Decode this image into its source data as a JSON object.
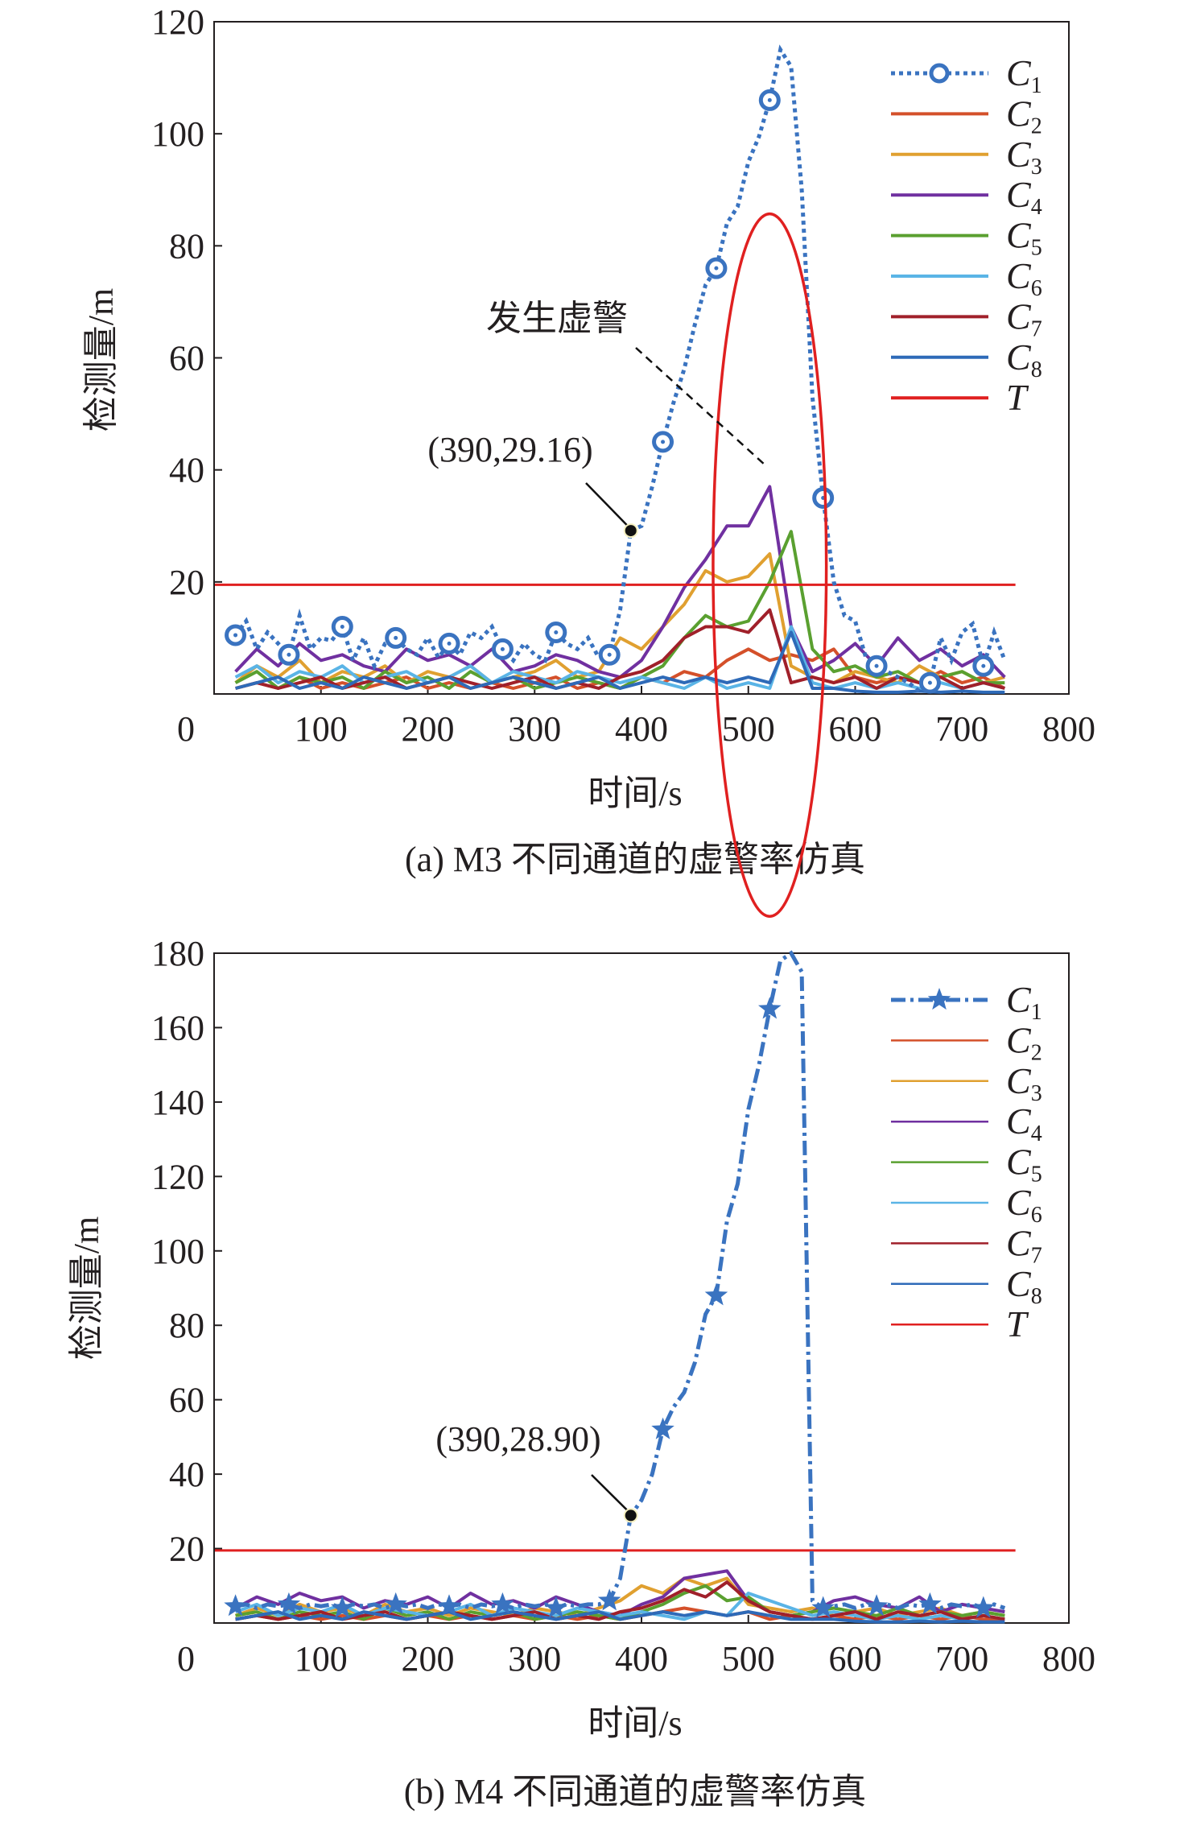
{
  "chart_data": [
    {
      "type": "line",
      "caption": "(a) M3 不同通道的虚警率仿真",
      "xlabel": "时间/s",
      "ylabel": "检测量/m",
      "xlim": [
        0,
        800
      ],
      "ylim": [
        0,
        120
      ],
      "xticks": [
        "0",
        "100",
        "200",
        "300",
        "400",
        "500",
        "600",
        "700",
        "800"
      ],
      "yticks": [
        "20",
        "40",
        "60",
        "80",
        "100",
        "120"
      ],
      "threshold": 19.5,
      "annotation_point": {
        "x": 390,
        "y": 29.16,
        "label": "(390,29.16)"
      },
      "callout": {
        "label": "发生虚警",
        "ellipse_center": [
          520,
          23
        ],
        "ellipse_radius": [
          53,
          19
        ]
      },
      "c1_marker": "circle",
      "c1_x_start": 20,
      "c1_x_step": 10,
      "c1_values": [
        10.5,
        13,
        8,
        11,
        9,
        7,
        14,
        8,
        10,
        9.5,
        12,
        6,
        10,
        5,
        9,
        10,
        8,
        7,
        10,
        6.5,
        9,
        7,
        11,
        10,
        12,
        8,
        6,
        9,
        7,
        6,
        11,
        9,
        8,
        10,
        6.5,
        7,
        15,
        29.16,
        30,
        37,
        45,
        52,
        58,
        66,
        73,
        76,
        84,
        87,
        95,
        99.5,
        106,
        115,
        112,
        90,
        53,
        35,
        20,
        14,
        13,
        6.5,
        5,
        4,
        3,
        2,
        0.5,
        2,
        10,
        6,
        11,
        12.5,
        5,
        11,
        6
      ],
      "other_x_start": 20,
      "other_x_step": 20,
      "series": [
        {
          "name": "C",
          "sub": "1",
          "color": "#3a73c0"
        },
        {
          "name": "C",
          "sub": "2",
          "color": "#d4502a",
          "values": [
            1,
            2,
            1,
            3,
            1,
            2,
            1,
            2,
            3,
            1,
            2,
            1,
            2,
            1,
            2,
            3,
            1,
            2,
            1,
            3,
            2,
            4,
            3,
            6,
            8,
            6,
            7,
            6,
            8,
            3,
            2,
            3,
            2,
            4,
            2,
            3,
            1
          ]
        },
        {
          "name": "C",
          "sub": "3",
          "color": "#e0a030",
          "values": [
            2,
            5,
            3,
            6,
            2,
            4,
            3,
            5,
            2,
            4,
            3,
            5,
            2,
            3,
            4,
            6,
            3,
            4,
            10,
            8,
            12,
            16,
            22,
            20,
            21,
            25,
            5,
            3,
            2,
            4,
            3,
            2,
            5,
            3,
            4,
            2,
            3
          ]
        },
        {
          "name": "C",
          "sub": "4",
          "color": "#7030a0",
          "values": [
            4,
            8,
            5,
            9,
            6,
            7,
            5,
            4,
            8,
            6,
            7,
            5,
            8,
            4,
            5,
            7,
            6,
            4,
            3,
            6,
            12,
            19,
            24,
            30,
            30,
            37,
            12,
            4,
            6,
            9,
            5,
            10,
            6,
            8,
            5,
            7,
            3
          ]
        },
        {
          "name": "C",
          "sub": "5",
          "color": "#5aa030",
          "values": [
            2,
            4,
            1,
            3,
            2,
            3,
            1,
            4,
            2,
            3,
            1,
            4,
            2,
            3,
            1,
            2,
            3,
            2,
            1,
            3,
            5,
            10,
            14,
            12,
            13,
            20,
            29,
            8,
            4,
            5,
            3,
            4,
            2,
            3,
            4,
            2,
            2
          ]
        },
        {
          "name": "C",
          "sub": "6",
          "color": "#5ab4e6",
          "values": [
            3,
            5,
            2,
            4,
            3,
            5,
            2,
            3,
            4,
            2,
            3,
            5,
            2,
            4,
            3,
            2,
            4,
            3,
            2,
            3,
            2,
            1,
            3,
            1,
            2,
            1,
            12,
            2,
            1,
            2,
            1,
            2,
            1,
            2,
            1,
            2,
            1
          ]
        },
        {
          "name": "C",
          "sub": "7",
          "color": "#a0202a",
          "values": [
            1,
            2,
            1,
            2,
            3,
            1,
            2,
            3,
            1,
            2,
            3,
            2,
            1,
            2,
            3,
            1,
            2,
            1,
            3,
            4,
            6,
            10,
            12,
            12,
            11,
            15,
            2,
            3,
            2,
            3,
            1,
            3,
            2,
            3,
            1,
            2,
            1
          ]
        },
        {
          "name": "C",
          "sub": "8",
          "color": "#2e6ab8",
          "values": [
            1,
            2,
            3,
            1,
            2,
            1,
            3,
            2,
            1,
            2,
            3,
            1,
            2,
            3,
            2,
            1,
            2,
            3,
            1,
            2,
            3,
            2,
            3,
            2,
            3,
            2,
            11,
            1,
            1,
            0.5,
            0.3,
            0.3,
            0.5,
            0.3,
            0.5,
            0.3,
            0.3
          ]
        },
        {
          "name": "T",
          "sub": "",
          "color": "#e02020"
        }
      ]
    },
    {
      "type": "line",
      "caption": "(b) M4 不同通道的虚警率仿真",
      "xlabel": "时间/s",
      "ylabel": "检测量/m",
      "xlim": [
        0,
        800
      ],
      "ylim": [
        0,
        180
      ],
      "xticks": [
        "0",
        "100",
        "200",
        "300",
        "400",
        "500",
        "600",
        "700",
        "800"
      ],
      "yticks": [
        "20",
        "40",
        "60",
        "80",
        "100",
        "120",
        "140",
        "160",
        "180"
      ],
      "threshold": 19.5,
      "annotation_point": {
        "x": 390,
        "y": 28.9,
        "label": "(390,28.90)"
      },
      "c1_marker": "star",
      "c1_x_start": 20,
      "c1_x_step": 10,
      "c1_values": [
        4.5,
        5,
        4,
        5,
        4.5,
        5,
        4,
        5,
        4.5,
        5,
        4,
        5,
        4.5,
        5,
        4,
        5,
        4.5,
        5,
        4,
        5,
        4.5,
        5,
        4,
        5,
        4.5,
        5,
        4,
        5,
        4.5,
        5,
        4,
        5,
        4.5,
        5,
        5,
        6,
        12,
        28.9,
        33,
        40,
        52,
        58,
        62,
        70,
        83,
        88,
        108,
        118,
        138,
        150,
        165,
        178,
        180,
        175,
        6,
        4,
        4.5,
        5,
        4,
        5,
        4.5,
        5,
        4,
        5,
        4.5,
        5,
        4,
        5,
        4.5,
        5,
        4,
        5,
        4
      ],
      "other_x_start": 20,
      "other_x_step": 20,
      "series": [
        {
          "name": "C",
          "sub": "1",
          "color": "#3a73c0"
        },
        {
          "name": "C",
          "sub": "2",
          "color": "#d4502a",
          "values": [
            1,
            2,
            1,
            2,
            1,
            2,
            1,
            2,
            1,
            2,
            1,
            2,
            1,
            2,
            1,
            2,
            1,
            2,
            1,
            2,
            3,
            4,
            3,
            2,
            3,
            1,
            2,
            1,
            2,
            1,
            2,
            1,
            2,
            1,
            2,
            1,
            1
          ]
        },
        {
          "name": "C",
          "sub": "3",
          "color": "#e0a030",
          "values": [
            2,
            4,
            2,
            5,
            3,
            4,
            2,
            5,
            3,
            4,
            2,
            4,
            3,
            2,
            4,
            3,
            2,
            4,
            6,
            10,
            8,
            12,
            10,
            12,
            5,
            4,
            3,
            4,
            2,
            3,
            4,
            2,
            3,
            4,
            2,
            3,
            2
          ]
        },
        {
          "name": "C",
          "sub": "4",
          "color": "#7030a0",
          "values": [
            4,
            7,
            5,
            8,
            6,
            7,
            4,
            6,
            5,
            7,
            4,
            8,
            5,
            6,
            4,
            7,
            5,
            3,
            2,
            5,
            7,
            12,
            13,
            14,
            6,
            3,
            2,
            3,
            6,
            7,
            5,
            4,
            7,
            3,
            5,
            4,
            3
          ]
        },
        {
          "name": "C",
          "sub": "5",
          "color": "#5aa030",
          "values": [
            2,
            3,
            1,
            3,
            2,
            3,
            1,
            4,
            2,
            3,
            1,
            3,
            2,
            3,
            1,
            2,
            3,
            2,
            1,
            3,
            5,
            8,
            10,
            6,
            7,
            3,
            2,
            3,
            4,
            3,
            2,
            4,
            2,
            3,
            2,
            3,
            2
          ]
        },
        {
          "name": "C",
          "sub": "6",
          "color": "#5ab4e6",
          "values": [
            3,
            5,
            2,
            4,
            3,
            5,
            2,
            4,
            3,
            2,
            3,
            5,
            2,
            4,
            3,
            2,
            4,
            3,
            2,
            3,
            2,
            1,
            3,
            2,
            8,
            6,
            4,
            2,
            3,
            2,
            1,
            2,
            1,
            2,
            1,
            2,
            1
          ]
        },
        {
          "name": "C",
          "sub": "7",
          "color": "#a0202a",
          "values": [
            1,
            2,
            1,
            2,
            3,
            1,
            2,
            3,
            1,
            2,
            3,
            2,
            1,
            2,
            3,
            1,
            2,
            1,
            3,
            4,
            6,
            9,
            7,
            11,
            6,
            3,
            2,
            1,
            2,
            3,
            1,
            3,
            2,
            3,
            1,
            2,
            1
          ]
        },
        {
          "name": "C",
          "sub": "8",
          "color": "#2e6ab8",
          "values": [
            1,
            2,
            3,
            1,
            2,
            1,
            3,
            2,
            1,
            2,
            3,
            1,
            2,
            3,
            2,
            1,
            2,
            3,
            1,
            2,
            3,
            2,
            3,
            2,
            3,
            2,
            1,
            1,
            1,
            0.5,
            0.3,
            0.3,
            0.5,
            0.3,
            0.5,
            0.3,
            0.3
          ]
        },
        {
          "name": "T",
          "sub": "",
          "color": "#e02020"
        }
      ]
    }
  ]
}
